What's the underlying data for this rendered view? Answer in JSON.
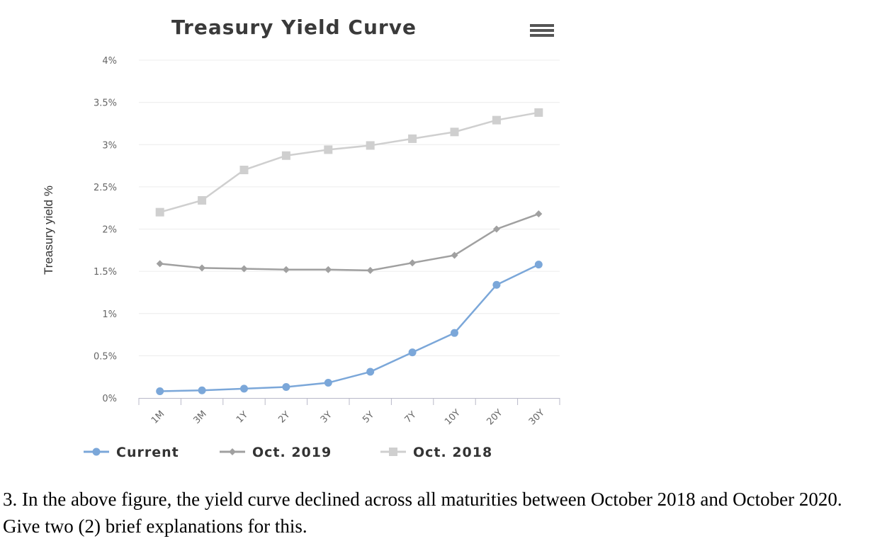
{
  "chart_data": {
    "type": "line",
    "title": "Treasury Yield Curve",
    "ylabel": "Treasury yield %",
    "xlabel": "",
    "categories": [
      "1M",
      "3M",
      "1Y",
      "2Y",
      "3Y",
      "5Y",
      "7Y",
      "10Y",
      "20Y",
      "30Y"
    ],
    "y_ticks": [
      "0%",
      "0.5%",
      "1%",
      "1.5%",
      "2%",
      "2.5%",
      "3%",
      "3.5%",
      "4%"
    ],
    "ylim": [
      0,
      4
    ],
    "grid": true,
    "legend_position": "bottom",
    "series": [
      {
        "name": "Current",
        "color": "#7ba7d9",
        "marker": "circle",
        "values": [
          0.08,
          0.09,
          0.11,
          0.13,
          0.18,
          0.31,
          0.54,
          0.77,
          1.34,
          1.58
        ]
      },
      {
        "name": "Oct. 2019",
        "color": "#a0a0a0",
        "marker": "diamond",
        "values": [
          1.59,
          1.54,
          1.53,
          1.52,
          1.52,
          1.51,
          1.6,
          1.69,
          2.0,
          2.18
        ]
      },
      {
        "name": "Oct. 2018",
        "color": "#cfcfcf",
        "marker": "square",
        "values": [
          2.2,
          2.34,
          2.7,
          2.87,
          2.94,
          2.99,
          3.07,
          3.15,
          3.29,
          3.38
        ]
      }
    ]
  },
  "menu_icon": "hamburger-menu-icon",
  "question": {
    "text": "3. In the above figure, the yield curve declined across all maturities between October 2018 and October 2020.  Give two (2) brief explanations for this."
  }
}
